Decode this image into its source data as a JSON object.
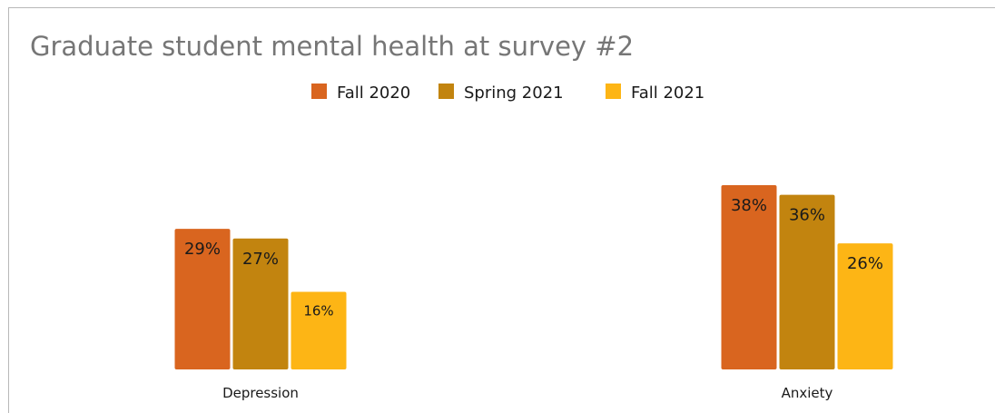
{
  "chart_data": {
    "type": "bar",
    "title": "Graduate student mental health at survey #2",
    "categories": [
      "Depression",
      "Anxiety"
    ],
    "series": [
      {
        "name": "Fall 2020",
        "values": [
          29,
          38
        ],
        "labels": [
          "29%",
          "38%"
        ],
        "color": "#D9651F"
      },
      {
        "name": "Spring 2021",
        "values": [
          27,
          36
        ],
        "labels": [
          "27%",
          "36%"
        ],
        "color": "#C2840F"
      },
      {
        "name": "Fall 2021",
        "values": [
          16,
          26
        ],
        "labels": [
          "16%",
          "26%"
        ],
        "color": "#FDB515"
      }
    ],
    "xlabel": "",
    "ylabel": "",
    "ylim": [
      0,
      38
    ],
    "legend_position": "top",
    "grid": false,
    "value_axis_visible": false
  }
}
